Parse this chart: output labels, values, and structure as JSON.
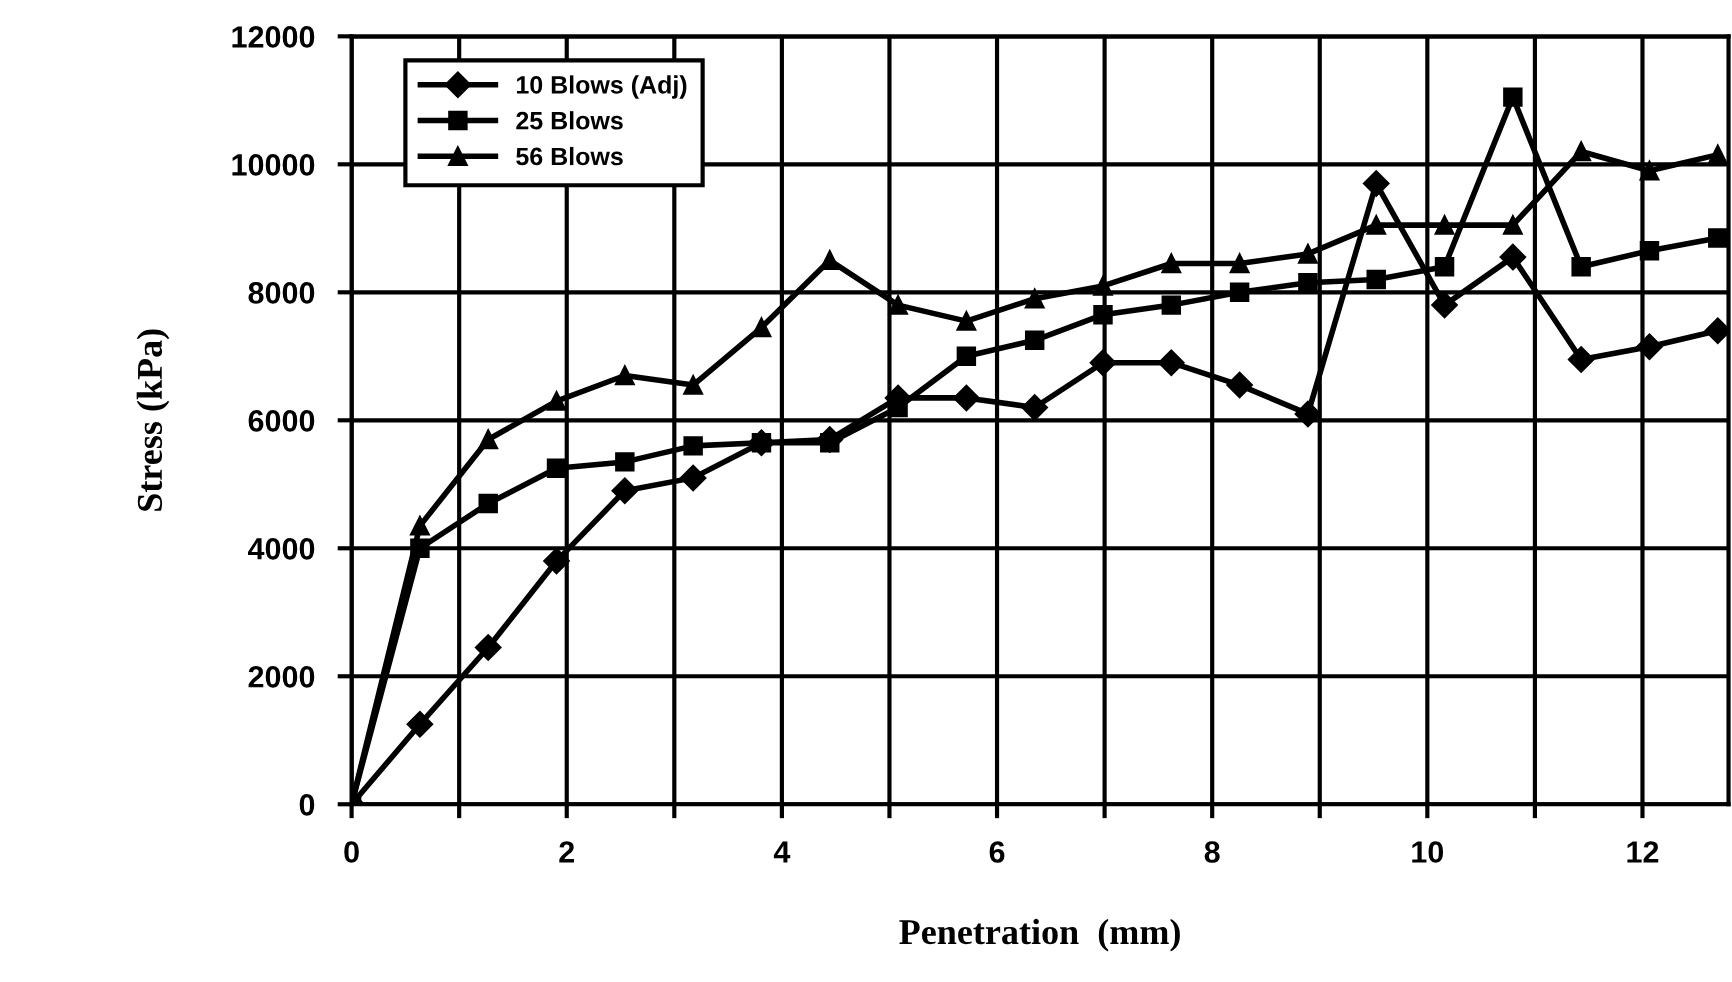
{
  "chart_data": {
    "type": "line",
    "xlabel": "Penetration  (mm)",
    "ylabel": "Stress (kPa)",
    "x": [
      0,
      0.635,
      1.27,
      1.905,
      2.54,
      3.175,
      3.81,
      4.445,
      5.08,
      5.715,
      6.35,
      6.985,
      7.62,
      8.255,
      8.89,
      9.525,
      10.16,
      10.795,
      11.43,
      12.065,
      12.7
    ],
    "series": [
      {
        "name": "10 Blows (Adj)",
        "color": "#000000",
        "marker": "diamond",
        "values": [
          0,
          1250,
          2450,
          3800,
          4900,
          5100,
          5650,
          5700,
          6350,
          6350,
          6200,
          6900,
          6900,
          6550,
          6100,
          9700,
          7800,
          8550,
          6950,
          7150,
          7400
        ]
      },
      {
        "name": "25 Blows",
        "color": "#000000",
        "marker": "square",
        "values": [
          0,
          4000,
          4700,
          5250,
          5350,
          5600,
          5650,
          5650,
          6200,
          7000,
          7250,
          7650,
          7800,
          8000,
          8150,
          8200,
          8400,
          11050,
          8400,
          8650,
          8850
        ]
      },
      {
        "name": "56 Blows",
        "color": "#000000",
        "marker": "triangle",
        "values": [
          0,
          4350,
          5700,
          6300,
          6700,
          6550,
          7450,
          8500,
          7800,
          7550,
          7900,
          8100,
          8450,
          8450,
          8600,
          9050,
          9050,
          9050,
          10200,
          9900,
          10150
        ]
      }
    ],
    "xlim": [
      0,
      12.8
    ],
    "ylim": [
      0,
      12000
    ],
    "xticks": [
      0,
      {
        "value": 1,
        "label": null
      },
      2,
      {
        "value": 3,
        "label": null
      },
      4,
      {
        "value": 5,
        "label": null
      },
      6,
      {
        "value": 7,
        "label": null
      },
      8,
      {
        "value": 9,
        "label": null
      },
      10,
      {
        "value": 11,
        "label": null
      },
      12
    ],
    "yticks": [
      0,
      2000,
      4000,
      6000,
      8000,
      10000,
      12000
    ],
    "grid": true,
    "legend": "top left",
    "line_style": "solid"
  }
}
